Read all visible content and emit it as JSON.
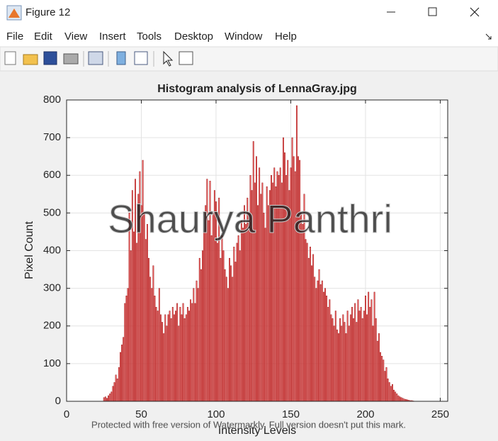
{
  "window": {
    "title": "Figure 12",
    "menu": [
      "File",
      "Edit",
      "View",
      "Insert",
      "Tools",
      "Desktop",
      "Window",
      "Help"
    ]
  },
  "watermark": {
    "name": "Shaurya Panthri",
    "notice": "Protected with free version of Watermarkly. Full version doesn't put this mark."
  },
  "chart_data": {
    "type": "bar",
    "title": "Histogram analysis of LennaGray.jpg",
    "x_label": "Intensity Levels",
    "y_label": "Pixel Count",
    "color": "#f06262",
    "edge_color": "#8b0000",
    "grid": true,
    "xlim": [
      0,
      255
    ],
    "xticks": [
      0,
      50,
      100,
      150,
      200,
      250
    ],
    "ylim": [
      0,
      800
    ],
    "yticks": [
      0,
      100,
      200,
      300,
      400,
      500,
      600,
      700,
      800
    ],
    "x": [
      0,
      1,
      2,
      3,
      4,
      5,
      6,
      7,
      8,
      9,
      10,
      11,
      12,
      13,
      14,
      15,
      16,
      17,
      18,
      19,
      20,
      21,
      22,
      23,
      24,
      25,
      26,
      27,
      28,
      29,
      30,
      31,
      32,
      33,
      34,
      35,
      36,
      37,
      38,
      39,
      40,
      41,
      42,
      43,
      44,
      45,
      46,
      47,
      48,
      49,
      50,
      51,
      52,
      53,
      54,
      55,
      56,
      57,
      58,
      59,
      60,
      61,
      62,
      63,
      64,
      65,
      66,
      67,
      68,
      69,
      70,
      71,
      72,
      73,
      74,
      75,
      76,
      77,
      78,
      79,
      80,
      81,
      82,
      83,
      84,
      85,
      86,
      87,
      88,
      89,
      90,
      91,
      92,
      93,
      94,
      95,
      96,
      97,
      98,
      99,
      100,
      101,
      102,
      103,
      104,
      105,
      106,
      107,
      108,
      109,
      110,
      111,
      112,
      113,
      114,
      115,
      116,
      117,
      118,
      119,
      120,
      121,
      122,
      123,
      124,
      125,
      126,
      127,
      128,
      129,
      130,
      131,
      132,
      133,
      134,
      135,
      136,
      137,
      138,
      139,
      140,
      141,
      142,
      143,
      144,
      145,
      146,
      147,
      148,
      149,
      150,
      151,
      152,
      153,
      154,
      155,
      156,
      157,
      158,
      159,
      160,
      161,
      162,
      163,
      164,
      165,
      166,
      167,
      168,
      169,
      170,
      171,
      172,
      173,
      174,
      175,
      176,
      177,
      178,
      179,
      180,
      181,
      182,
      183,
      184,
      185,
      186,
      187,
      188,
      189,
      190,
      191,
      192,
      193,
      194,
      195,
      196,
      197,
      198,
      199,
      200,
      201,
      202,
      203,
      204,
      205,
      206,
      207,
      208,
      209,
      210,
      211,
      212,
      213,
      214,
      215,
      216,
      217,
      218,
      219,
      220,
      221,
      222,
      223,
      224,
      225,
      226,
      227,
      228,
      229,
      230,
      231,
      232,
      233,
      234,
      235,
      236,
      237,
      238,
      239,
      240,
      241,
      242,
      243,
      244,
      245,
      246,
      247,
      248,
      249,
      250,
      251,
      252,
      253,
      254,
      255
    ],
    "values": [
      0,
      0,
      0,
      0,
      0,
      0,
      0,
      0,
      0,
      0,
      0,
      0,
      0,
      0,
      0,
      0,
      0,
      0,
      0,
      0,
      0,
      0,
      0,
      0,
      0,
      10,
      12,
      8,
      15,
      20,
      25,
      40,
      50,
      70,
      60,
      90,
      130,
      150,
      170,
      260,
      280,
      300,
      500,
      400,
      560,
      450,
      590,
      420,
      550,
      610,
      520,
      640,
      500,
      430,
      470,
      380,
      330,
      300,
      360,
      280,
      250,
      240,
      300,
      230,
      210,
      180,
      230,
      200,
      230,
      240,
      220,
      250,
      230,
      240,
      260,
      200,
      250,
      230,
      260,
      220,
      230,
      250,
      240,
      270,
      260,
      300,
      260,
      320,
      300,
      380,
      350,
      400,
      450,
      520,
      590,
      480,
      585,
      440,
      500,
      560,
      530,
      420,
      540,
      380,
      440,
      400,
      350,
      330,
      300,
      380,
      360,
      330,
      410,
      370,
      420,
      440,
      400,
      480,
      460,
      520,
      470,
      540,
      500,
      600,
      560,
      690,
      580,
      650,
      520,
      620,
      550,
      580,
      500,
      460,
      570,
      520,
      560,
      600,
      580,
      620,
      570,
      610,
      600,
      620,
      580,
      700,
      660,
      600,
      640,
      560,
      620,
      700,
      650,
      610,
      785,
      650,
      640,
      500,
      470,
      550,
      430,
      420,
      380,
      410,
      360,
      390,
      330,
      300,
      320,
      350,
      310,
      320,
      290,
      300,
      280,
      250,
      270,
      230,
      220,
      200,
      240,
      190,
      180,
      220,
      200,
      230,
      210,
      180,
      240,
      200,
      230,
      250,
      220,
      260,
      210,
      270,
      240,
      250,
      220,
      240,
      280,
      230,
      290,
      250,
      270,
      200,
      290,
      220,
      160,
      180,
      130,
      120,
      110,
      80,
      90,
      60,
      50,
      40,
      45,
      30,
      25,
      20,
      15,
      12,
      10,
      8,
      6,
      5,
      4,
      3,
      2,
      2,
      1,
      0,
      0,
      0,
      0,
      0,
      0,
      0,
      0,
      0,
      0,
      0,
      0,
      0,
      0,
      0,
      0,
      0,
      0,
      0,
      0,
      0,
      0,
      0
    ]
  }
}
